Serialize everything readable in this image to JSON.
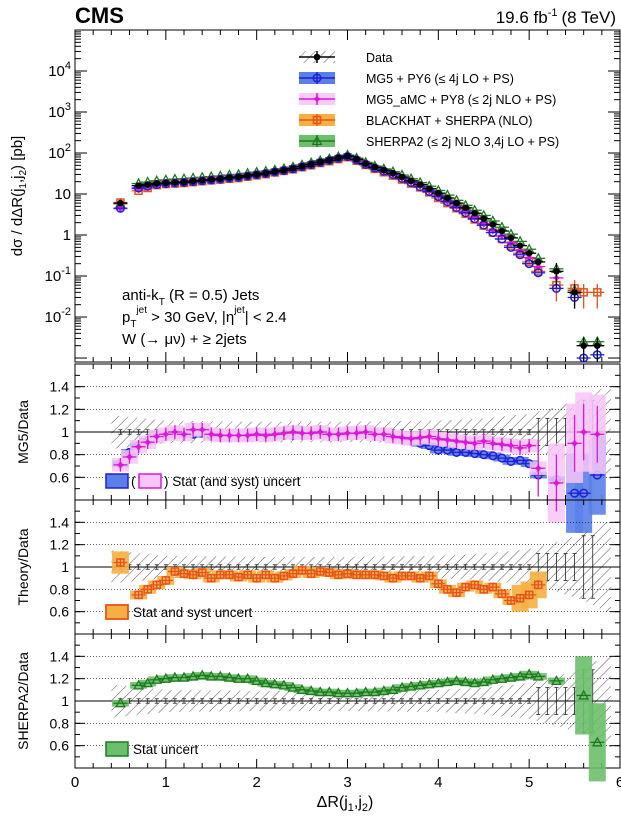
{
  "header": {
    "experiment": "CMS",
    "lumi": "19.6 fb",
    "lumi_exp": "-1",
    "energy": "(8 TeV)"
  },
  "colors": {
    "data": "#000000",
    "mg5": "#1f1fd6",
    "mg5_band": "#5b7fe8",
    "amc": "#d81ad8",
    "amc_band": "#f7c5f7",
    "blackhat": "#e8531c",
    "blackhat_band": "#f5b041",
    "sherpa": "#1e7a1e",
    "sherpa_band": "#6cbf6c",
    "hatch": "#555555"
  },
  "chart_data": [
    {
      "type": "scatter",
      "panel": "top",
      "ylabel": "dσ / dΔR(j1,j2)  [pb]",
      "ylabel_parts": [
        "dσ / dΔR(j",
        "1",
        ",j",
        "2",
        ")  [pb]"
      ],
      "yscale": "log",
      "ylim": [
        0.0008,
        100000
      ],
      "xlim": [
        0,
        6
      ],
      "ytick_labels": [
        {
          "base": "10",
          "exp": "-2"
        },
        {
          "base": "10",
          "exp": "-1"
        },
        {
          "base": "1",
          "exp": ""
        },
        {
          "base": "10",
          "exp": ""
        },
        {
          "base": "10",
          "exp": "2"
        },
        {
          "base": "10",
          "exp": "3"
        },
        {
          "base": "10",
          "exp": "4"
        }
      ],
      "annotations": [
        {
          "parts": [
            [
              "anti-k",
              ""
            ],
            [
              "T",
              "sub"
            ],
            [
              " (R = 0.5) Jets",
              ""
            ]
          ]
        },
        {
          "parts": [
            [
              "p",
              ""
            ],
            [
              "T",
              "sub"
            ],
            [
              "jet",
              "sup"
            ],
            [
              " > 30 GeV, |η",
              ""
            ],
            [
              "jet",
              "sup"
            ],
            [
              "| < 2.4",
              ""
            ]
          ]
        },
        {
          "parts": [
            [
              "W (→ μν) + ≥ 2jets",
              ""
            ]
          ]
        }
      ],
      "legend_position": "top-right",
      "legend": [
        {
          "label": "Data",
          "style": "data"
        },
        {
          "label": "MG5 + PY6 (≤ 4j LO + PS)",
          "style": "mg5"
        },
        {
          "label": "MG5_aMC + PY8 (≤ 2j NLO + PS)",
          "style": "amc"
        },
        {
          "label": "BLACKHAT + SHERPA (NLO)",
          "style": "blackhat"
        },
        {
          "label": "SHERPA2 (≤ 2j NLO 3,4j LO + PS)",
          "style": "sherpa"
        }
      ],
      "x": [
        0.5,
        0.7,
        0.8,
        0.9,
        1.0,
        1.1,
        1.2,
        1.3,
        1.4,
        1.5,
        1.6,
        1.7,
        1.8,
        1.9,
        2.0,
        2.1,
        2.2,
        2.3,
        2.4,
        2.5,
        2.6,
        2.7,
        2.8,
        2.9,
        3.0,
        3.1,
        3.2,
        3.3,
        3.4,
        3.5,
        3.6,
        3.7,
        3.8,
        3.9,
        4.0,
        4.1,
        4.2,
        4.3,
        4.4,
        4.5,
        4.6,
        4.7,
        4.8,
        4.9,
        5.0,
        5.1,
        5.3,
        5.5,
        5.6,
        5.75
      ],
      "series": [
        {
          "name": "Data",
          "key": "data",
          "values": [
            6,
            16,
            17,
            18,
            18.5,
            19,
            19.5,
            20.5,
            21.5,
            22.5,
            23.5,
            25,
            26,
            28,
            30,
            32,
            35,
            38,
            42,
            47,
            53,
            60,
            67,
            76,
            84,
            70,
            55,
            45,
            38,
            32,
            26,
            21,
            17,
            13.5,
            10.5,
            8,
            6,
            4.6,
            3.4,
            2.5,
            1.8,
            1.25,
            0.85,
            0.55,
            0.36,
            0.22,
            0.13,
            0.04,
            0.002,
            0.002
          ]
        },
        {
          "name": "MG5 + PY6 (≤ 4j LO + PS)",
          "key": "mg5",
          "values": [
            4.5,
            14,
            15.5,
            17,
            18,
            18.5,
            19.2,
            20,
            21,
            22,
            23,
            24.5,
            25.5,
            27.5,
            29.5,
            31.5,
            34.5,
            37.5,
            41,
            46,
            52,
            59,
            66,
            74,
            82,
            68,
            53,
            43,
            36,
            30,
            24,
            19,
            15,
            11.5,
            8.7,
            6.5,
            4.7,
            3.5,
            2.5,
            1.75,
            1.15,
            0.8,
            0.5,
            0.33,
            0.2,
            0.12,
            0.05,
            0.03,
            0.001,
            0.0012
          ]
        },
        {
          "name": "MG5_aMC + PY8 (≤ 2j NLO + PS)",
          "key": "amc",
          "values": [
            4.4,
            13.5,
            15,
            16.5,
            17.5,
            18.5,
            19,
            19.8,
            20.8,
            21.8,
            22.8,
            24.2,
            25.3,
            27.2,
            29.2,
            31.2,
            34.2,
            37.2,
            40.8,
            45.8,
            51.8,
            58.8,
            65.8,
            73.8,
            81.8,
            68,
            53.5,
            43.5,
            36.5,
            30.5,
            24.5,
            19.5,
            15.5,
            12,
            9,
            6.8,
            5,
            3.7,
            2.7,
            1.9,
            1.3,
            0.95,
            0.65,
            0.42,
            0.28,
            0.17,
            0.09,
            0.04,
            0.002,
            0.002
          ]
        },
        {
          "name": "BLACKHAT + SHERPA (NLO)",
          "key": "blackhat",
          "values": [
            6.2,
            12,
            14,
            16.5,
            17.5,
            18,
            18.5,
            19.5,
            20.5,
            21.5,
            22.5,
            23.5,
            24.5,
            26.5,
            28.5,
            30.5,
            33.5,
            36.5,
            40,
            45,
            50,
            57,
            63,
            71,
            79,
            65,
            51,
            41,
            34,
            28,
            22.5,
            18,
            14.5,
            11,
            8,
            6,
            4.5,
            3.3,
            2.4,
            1.7,
            1.15,
            0.8,
            0.55,
            0.36,
            0.22,
            0.13,
            0.06,
            0.05,
            0.04,
            0.04
          ]
        },
        {
          "name": "SHERPA2 (≤ 2j NLO 3,4j LO + PS)",
          "key": "sherpa",
          "values": [
            5.8,
            18,
            19.5,
            21,
            22,
            23,
            23.5,
            24.5,
            25.5,
            26.5,
            27.5,
            29,
            30,
            32,
            34,
            36,
            38.5,
            41.5,
            45.5,
            51,
            57.5,
            65,
            72,
            81,
            89,
            75,
            59,
            48,
            41,
            35,
            29,
            23.5,
            19,
            15.5,
            12.2,
            9.4,
            7,
            5.3,
            4,
            3,
            2.2,
            1.55,
            1.05,
            0.7,
            0.45,
            0.27,
            0.15,
            0.045,
            0.0025,
            0.0025
          ]
        }
      ]
    },
    {
      "type": "scatter",
      "panel": "mg5_ratio",
      "ylabel": "MG5/Data",
      "ylim": [
        0.4,
        1.6
      ],
      "xlim": [
        0,
        6
      ],
      "ytick_labels": [
        "0.6",
        "0.8",
        "1",
        "1.2",
        "1.4"
      ],
      "legend_text": ") Stat (and syst) uncert",
      "legend_open": "(",
      "x": [
        0.5,
        0.6,
        0.7,
        0.8,
        0.9,
        1.0,
        1.1,
        1.2,
        1.3,
        1.4,
        1.5,
        1.6,
        1.7,
        1.8,
        1.9,
        2.0,
        2.1,
        2.2,
        2.3,
        2.4,
        2.5,
        2.6,
        2.7,
        2.8,
        2.9,
        3.0,
        3.1,
        3.2,
        3.3,
        3.4,
        3.5,
        3.6,
        3.7,
        3.8,
        3.9,
        4.0,
        4.1,
        4.2,
        4.3,
        4.4,
        4.5,
        4.6,
        4.7,
        4.8,
        4.9,
        5.0,
        5.1,
        5.3,
        5.5,
        5.6,
        5.75
      ],
      "series": [
        {
          "name": "MG5 + PY6 (≤ 4j LO + PS)",
          "key": "mg5",
          "values": [
            0.72,
            0.82,
            0.88,
            0.92,
            0.95,
            0.97,
            0.99,
            0.99,
            0.98,
            0.99,
            0.97,
            0.96,
            0.96,
            0.96,
            0.96,
            0.97,
            0.97,
            0.97,
            0.97,
            0.97,
            0.98,
            0.98,
            0.99,
            0.99,
            0.99,
            0.99,
            0.99,
            0.98,
            0.98,
            0.97,
            0.96,
            0.94,
            0.92,
            0.9,
            0.88,
            0.84,
            0.84,
            0.82,
            0.82,
            0.81,
            0.8,
            0.79,
            0.77,
            0.74,
            0.75,
            0.72,
            0.62,
            0.58,
            0.46,
            0.46,
            0.62
          ]
        },
        {
          "name": "MG5_aMC + PY8 (≤ 2j NLO + PS)",
          "key": "amc",
          "values": [
            0.71,
            0.78,
            0.87,
            0.91,
            0.96,
            0.98,
            1.0,
            0.98,
            1.02,
            1.02,
            0.98,
            0.97,
            0.97,
            0.97,
            0.97,
            0.98,
            0.97,
            0.98,
            0.99,
            1.0,
            0.99,
            0.99,
            1.0,
            0.98,
            0.98,
            0.99,
            0.99,
            1.0,
            0.98,
            0.98,
            0.96,
            0.95,
            0.94,
            0.95,
            0.96,
            0.94,
            0.93,
            0.92,
            0.91,
            0.9,
            0.92,
            0.9,
            0.89,
            0.88,
            0.86,
            0.88,
            0.68,
            0.55,
            0.9,
            1.0,
            0.98
          ]
        }
      ]
    },
    {
      "type": "scatter",
      "panel": "theory_ratio",
      "ylabel": "Theory/Data",
      "ylim": [
        0.4,
        1.6
      ],
      "xlim": [
        0,
        6
      ],
      "ytick_labels": [
        "0.6",
        "0.8",
        "1",
        "1.2",
        "1.4"
      ],
      "legend_text": "Stat and syst uncert",
      "x": [
        0.5,
        0.7,
        0.8,
        0.9,
        1.0,
        1.1,
        1.2,
        1.3,
        1.4,
        1.5,
        1.6,
        1.7,
        1.8,
        1.9,
        2.0,
        2.1,
        2.2,
        2.3,
        2.4,
        2.5,
        2.6,
        2.7,
        2.8,
        2.9,
        3.0,
        3.1,
        3.2,
        3.3,
        3.4,
        3.5,
        3.6,
        3.7,
        3.8,
        3.9,
        4.0,
        4.1,
        4.2,
        4.3,
        4.4,
        4.5,
        4.6,
        4.7,
        4.8,
        4.9,
        5.0,
        5.1
      ],
      "series": [
        {
          "name": "BLACKHAT + SHERPA (NLO)",
          "key": "blackhat",
          "values": [
            1.04,
            0.75,
            0.8,
            0.84,
            0.88,
            0.96,
            0.94,
            0.93,
            0.95,
            0.9,
            0.93,
            0.93,
            0.91,
            0.93,
            0.9,
            0.93,
            0.9,
            0.92,
            0.94,
            0.97,
            0.94,
            0.96,
            0.95,
            0.93,
            0.94,
            0.93,
            0.93,
            0.93,
            0.92,
            0.9,
            0.92,
            0.92,
            0.9,
            0.92,
            0.85,
            0.8,
            0.77,
            0.82,
            0.84,
            0.8,
            0.82,
            0.76,
            0.7,
            0.72,
            0.75,
            0.84
          ]
        }
      ]
    },
    {
      "type": "scatter",
      "panel": "sherpa_ratio",
      "ylabel": "SHERPA2/Data",
      "ylim": [
        0.4,
        1.6
      ],
      "xlim": [
        0,
        6
      ],
      "ytick_labels": [
        "0.6",
        "0.8",
        "1",
        "1.2",
        "1.4"
      ],
      "legend_text": "Stat uncert",
      "x": [
        0.5,
        0.7,
        0.8,
        0.9,
        1.0,
        1.1,
        1.2,
        1.3,
        1.4,
        1.5,
        1.6,
        1.7,
        1.8,
        1.9,
        2.0,
        2.1,
        2.2,
        2.3,
        2.4,
        2.5,
        2.6,
        2.7,
        2.8,
        2.9,
        3.0,
        3.1,
        3.2,
        3.3,
        3.4,
        3.5,
        3.6,
        3.7,
        3.8,
        3.9,
        4.0,
        4.1,
        4.2,
        4.3,
        4.4,
        4.5,
        4.6,
        4.7,
        4.8,
        4.9,
        5.0,
        5.1,
        5.3,
        5.6,
        5.75
      ],
      "series": [
        {
          "name": "SHERPA2 (≤ 2j NLO 3,4j LO + PS)",
          "key": "sherpa",
          "values": [
            0.98,
            1.14,
            1.16,
            1.19,
            1.2,
            1.21,
            1.21,
            1.22,
            1.23,
            1.22,
            1.22,
            1.21,
            1.2,
            1.2,
            1.18,
            1.16,
            1.15,
            1.14,
            1.12,
            1.1,
            1.09,
            1.08,
            1.08,
            1.07,
            1.07,
            1.07,
            1.08,
            1.08,
            1.09,
            1.1,
            1.12,
            1.13,
            1.14,
            1.15,
            1.16,
            1.17,
            1.18,
            1.17,
            1.16,
            1.17,
            1.19,
            1.2,
            1.21,
            1.22,
            1.24,
            1.22,
            1.18,
            1.05,
            0.63
          ]
        }
      ]
    }
  ],
  "shared_x": {
    "xlabel_parts": [
      "ΔR(j",
      "1",
      ",j",
      "2",
      ")"
    ],
    "xtick_labels": [
      "0",
      "1",
      "2",
      "3",
      "4",
      "5",
      "6"
    ]
  }
}
